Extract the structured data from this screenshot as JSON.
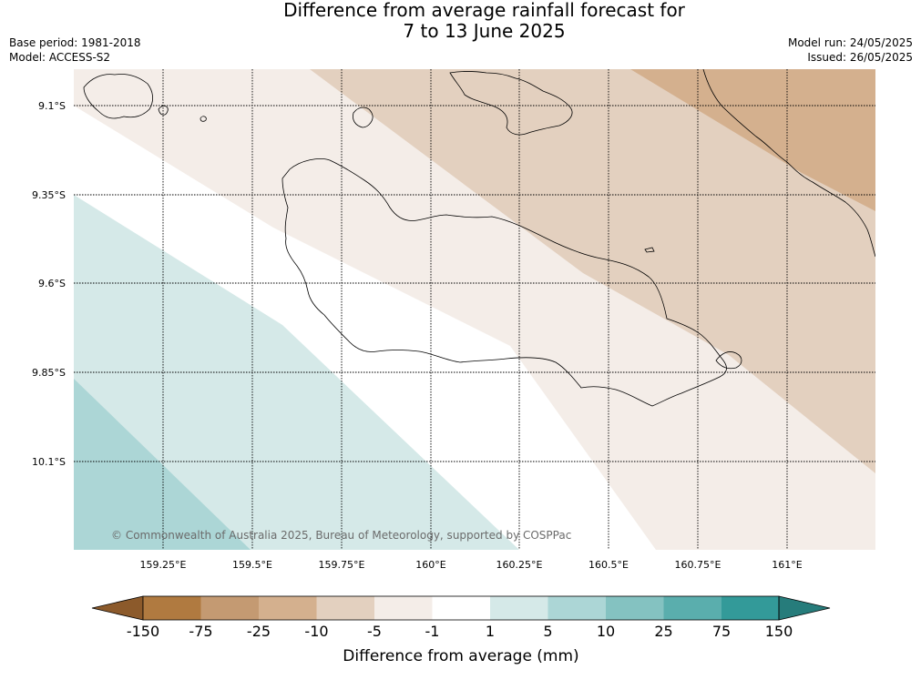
{
  "title_line1": "Difference from average rainfall forecast for",
  "title_line2": "7 to 13 June 2025",
  "meta_left": {
    "base_period": "Base period: 1981-2018",
    "model": "Model: ACCESS-S2"
  },
  "meta_right": {
    "model_run": "Model run: 24/05/2025",
    "issued": "Issued: 26/05/2025"
  },
  "map": {
    "lat_labels": [
      "9.1°S",
      "9.35°S",
      "9.6°S",
      "9.85°S",
      "10.1°S"
    ],
    "lon_labels": [
      "159.25°E",
      "159.5°E",
      "159.75°E",
      "160°E",
      "160.25°E",
      "160.5°E",
      "160.75°E",
      "161°E"
    ],
    "copyright": "© Commonwealth of Australia 2025, Bureau of Meteorology, supported by COSPPac"
  },
  "colorbar": {
    "label": "Difference from average (mm)",
    "ticks": [
      "-150",
      "-75",
      "-25",
      "-10",
      "-5",
      "-1",
      "1",
      "5",
      "10",
      "25",
      "75",
      "150"
    ],
    "colors": [
      "#8c5a2b",
      "#b07a40",
      "#c49a72",
      "#d4b08e",
      "#e3d0bf",
      "#f4ede8",
      "#ffffff",
      "#d5e9e8",
      "#acd6d6",
      "#84c2c1",
      "#5aaead",
      "#339a99",
      "#267c7b"
    ]
  }
}
